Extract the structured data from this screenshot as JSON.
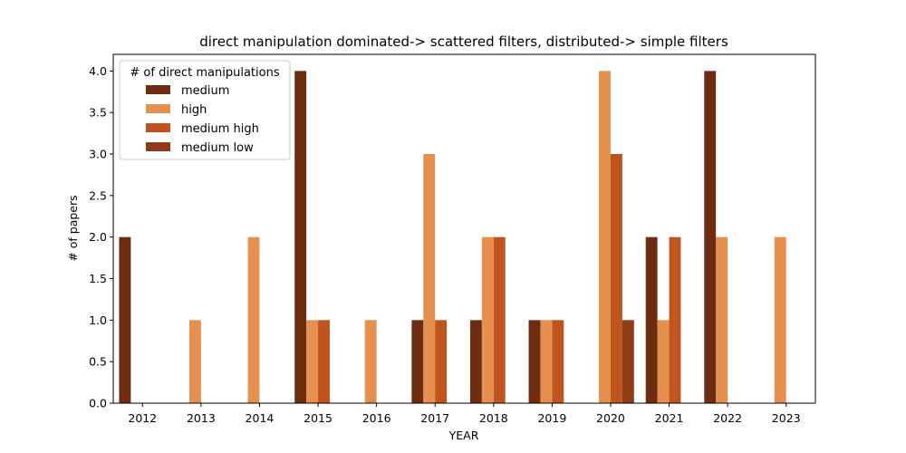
{
  "chart_data": {
    "type": "bar",
    "title": "direct manipulation dominated-> scattered filters, distributed-> simple filters",
    "xlabel": "YEAR",
    "ylabel": "# of papers",
    "ylim": [
      0,
      4.2
    ],
    "yticks": [
      "0.0",
      "0.5",
      "1.0",
      "1.5",
      "2.0",
      "2.5",
      "3.0",
      "3.5",
      "4.0"
    ],
    "categories": [
      "2012",
      "2013",
      "2014",
      "2015",
      "2016",
      "2017",
      "2018",
      "2019",
      "2020",
      "2021",
      "2022",
      "2023"
    ],
    "legend": {
      "title": "# of direct manipulations",
      "position": "top-left"
    },
    "grid": false,
    "series": [
      {
        "name": "medium",
        "color": "#6e2c11",
        "values": [
          2,
          0,
          0,
          4,
          0,
          1,
          1,
          1,
          0,
          2,
          4,
          0
        ]
      },
      {
        "name": "high",
        "color": "#e69050",
        "values": [
          0,
          1,
          2,
          1,
          1,
          3,
          2,
          1,
          4,
          1,
          2,
          2
        ]
      },
      {
        "name": "medium high",
        "color": "#c0541e",
        "values": [
          0,
          0,
          0,
          1,
          0,
          1,
          2,
          1,
          3,
          2,
          0,
          0
        ]
      },
      {
        "name": "medium low",
        "color": "#8e3b16",
        "values": [
          0,
          0,
          0,
          0,
          0,
          0,
          0,
          0,
          1,
          0,
          0,
          0
        ]
      }
    ]
  }
}
